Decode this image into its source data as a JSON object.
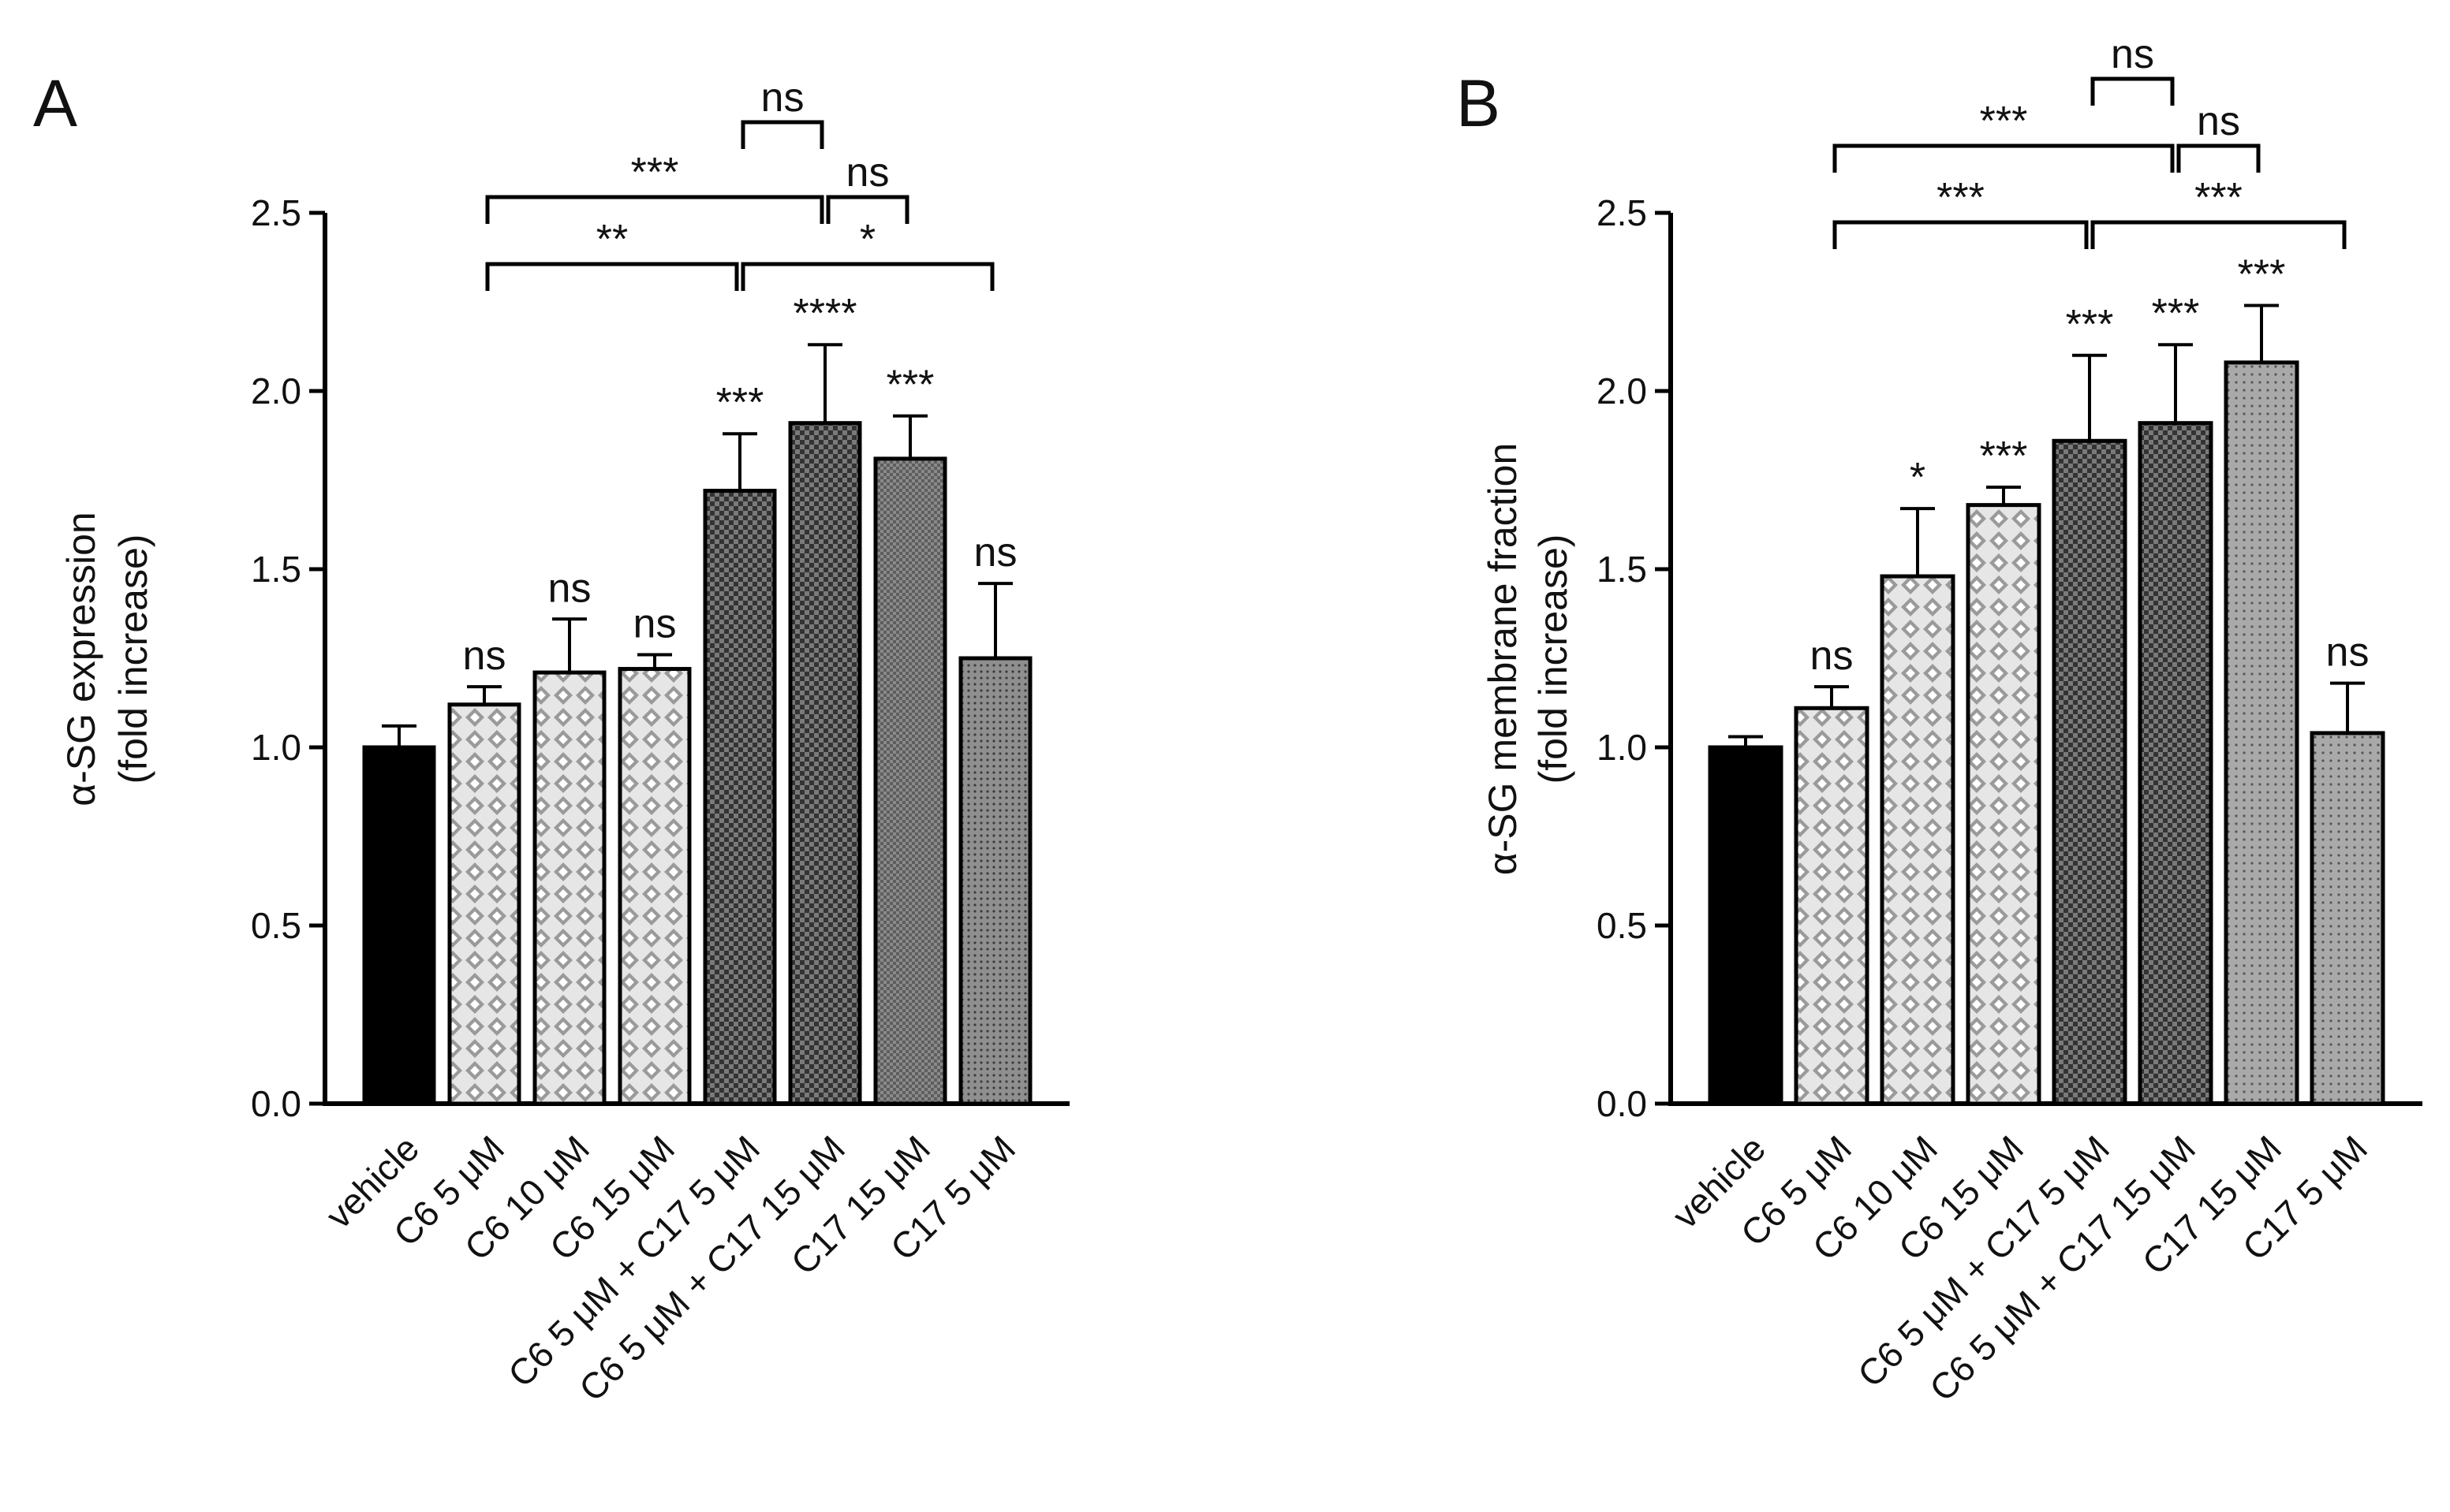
{
  "chart_data": [
    {
      "type": "bar",
      "panel": "A",
      "ylabel_line1": "α-SG expression",
      "ylabel_line2": "(fold increase)",
      "ylim": [
        0,
        2.5
      ],
      "yticks": [
        "0.0",
        "0.5",
        "1.0",
        "1.5",
        "2.0",
        "2.5"
      ],
      "categories": [
        "vehicle",
        "C6 5 μM",
        "C6 10 μM",
        "C6 15 μM",
        "C6 5 μM + C17 5 μM",
        "C6 5 μM + C17 15 μM",
        "C17 15 μM",
        "C17 5 μM"
      ],
      "values": [
        1.0,
        1.12,
        1.21,
        1.22,
        1.72,
        1.91,
        1.81,
        1.25
      ],
      "errors": [
        0.06,
        0.05,
        0.15,
        0.04,
        0.16,
        0.22,
        0.12,
        0.21
      ],
      "significance": [
        "",
        "ns",
        "ns",
        "ns",
        "***",
        "****",
        "***",
        "ns"
      ],
      "patterns": [
        "solid",
        "diamond-light",
        "diamond-light",
        "diamond-light",
        "check-dark",
        "check-dark",
        "check-mid",
        "dots-mid"
      ],
      "comparisons": [
        {
          "from": 1,
          "to": 4,
          "label": "**",
          "level": 0
        },
        {
          "from": 4,
          "to": 7,
          "label": "*",
          "level": 0
        },
        {
          "from": 1,
          "to": 5,
          "label": "***",
          "level": 1
        },
        {
          "from": 5,
          "to": 6,
          "label": "ns",
          "level": 1
        },
        {
          "from": 4,
          "to": 5,
          "label": "ns",
          "level": 2
        }
      ]
    },
    {
      "type": "bar",
      "panel": "B",
      "ylabel_line1": "α-SG membrane fraction",
      "ylabel_line2": "(fold increase)",
      "ylim": [
        0,
        2.5
      ],
      "yticks": [
        "0.0",
        "0.5",
        "1.0",
        "1.5",
        "2.0",
        "2.5"
      ],
      "categories": [
        "vehicle",
        "C6 5 μM",
        "C6 10 μM",
        "C6 15 μM",
        "C6  5 μM + C17 5 μM",
        "C6 5 μM + C17 15 μM",
        "C17 15 μM",
        "C17 5 μM"
      ],
      "values": [
        1.0,
        1.11,
        1.48,
        1.68,
        1.86,
        1.91,
        2.08,
        1.04
      ],
      "errors": [
        0.03,
        0.06,
        0.19,
        0.05,
        0.24,
        0.22,
        0.16,
        0.14
      ],
      "significance": [
        "",
        "ns",
        "*",
        "***",
        "***",
        "***",
        "***",
        "ns"
      ],
      "patterns": [
        "solid",
        "diamond-light",
        "diamond-light",
        "diamond-light",
        "check-dark",
        "check-dark",
        "dots-light",
        "dots-light"
      ],
      "comparisons": [
        {
          "from": 1,
          "to": 4,
          "label": "***",
          "level": 0
        },
        {
          "from": 4,
          "to": 7,
          "label": "***",
          "level": 0
        },
        {
          "from": 1,
          "to": 5,
          "label": "***",
          "level": 1
        },
        {
          "from": 5,
          "to": 6,
          "label": "ns",
          "level": 1
        },
        {
          "from": 4,
          "to": 5,
          "label": "ns",
          "level": 2
        }
      ]
    }
  ]
}
